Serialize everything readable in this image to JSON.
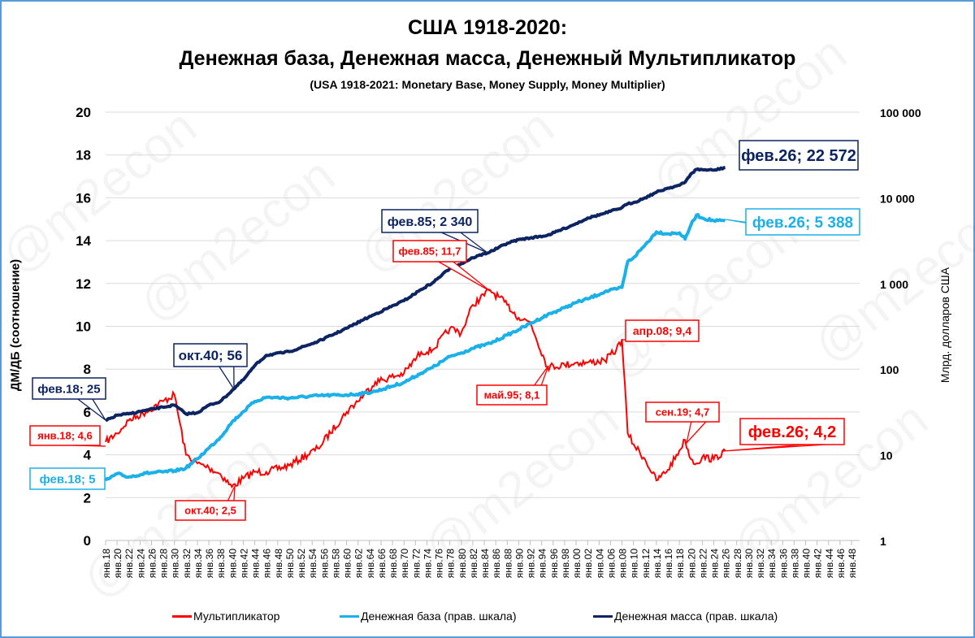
{
  "title": {
    "line1": "США 1918-2020:",
    "line2": "Денежная база, Денежная масса, Денежный Мультипликатор",
    "subtitle": "(USA 1918-2021: Monetary Base, Money Supply,  Money Multiplier)"
  },
  "watermark": "@m2econ",
  "axes": {
    "left_label": "ДМ/ДБ (соотношение)",
    "right_label": "Млрд. долларов США",
    "left_ticks": [
      "0",
      "2",
      "4",
      "6",
      "8",
      "10",
      "12",
      "14",
      "16",
      "18",
      "20"
    ],
    "right_ticks": [
      "1",
      "10",
      "100",
      "1 000",
      "10 000",
      "100 000"
    ],
    "x_ticks": [
      "янв.18",
      "янв.20",
      "янв.22",
      "янв.24",
      "янв.26",
      "янв.28",
      "янв.30",
      "янв.32",
      "янв.34",
      "янв.36",
      "янв.38",
      "янв.40",
      "янв.42",
      "янв.44",
      "янв.46",
      "янв.48",
      "янв.50",
      "янв.52",
      "янв.54",
      "янв.56",
      "янв.58",
      "янв.60",
      "янв.62",
      "янв.64",
      "янв.66",
      "янв.68",
      "янв.70",
      "янв.72",
      "янв.74",
      "янв.76",
      "янв.78",
      "янв.80",
      "янв.82",
      "янв.84",
      "янв.86",
      "янв.88",
      "янв.90",
      "янв.92",
      "янв.94",
      "янв.96",
      "янв.98",
      "янв.00",
      "янв.02",
      "янв.04",
      "янв.06",
      "янв.08",
      "янв.10",
      "янв.12",
      "янв.14",
      "янв.16",
      "янв.18",
      "янв.20",
      "янв.22",
      "янв.24",
      "янв.26",
      "янв.28",
      "янв.30",
      "янв.32",
      "янв.34",
      "янв.36",
      "янв.38",
      "янв.40",
      "янв.42",
      "янв.44",
      "янв.46",
      "янв.48"
    ]
  },
  "legend": {
    "items": [
      {
        "label": "Мультипликатор",
        "color": "#ff0000"
      },
      {
        "label": "Денежная база (прав. шкала)",
        "color": "#1cb0e8"
      },
      {
        "label": "Денежная масса (прав. шкала)",
        "color": "#0c2461"
      }
    ]
  },
  "annotations": {
    "ms_feb18": "фев.18; 25",
    "ms_oct40": "окт.40; 56",
    "ms_feb85": "фев.85; 2 340",
    "ms_feb26": "фев.26; 22 572",
    "mb_feb18": "фев.18; 5",
    "mb_feb26": "фев.26; 5 388",
    "mm_jan18": "янв.18;   4,6",
    "mm_oct40": "окт.40;   2,5",
    "mm_feb85": "фев.85;   11,7",
    "mm_may95": "май.95;   8,1",
    "mm_apr08": "апр.08;   9,4",
    "mm_sep19": "сен.19;   4,7",
    "mm_feb26": "фев.26;   4,2"
  },
  "colors": {
    "multiplier": "#ff0000",
    "base": "#1cb0e8",
    "supply": "#0c2461",
    "grid": "#d9d9d9",
    "frame": "#5b9bd5"
  },
  "chart_data": {
    "type": "line",
    "title": "США 1918-2020: Денежная база, Денежная масса, Денежный Мультипликатор",
    "subtitle": "(USA 1918-2021: Monetary Base, Money Supply,  Money Multiplier)",
    "xlabel": "",
    "ylabel_left": "ДМ/ДБ (соотношение)",
    "ylabel_right": "Млрд. долларов США",
    "ylim_left": [
      0,
      20
    ],
    "ylim_right_log": [
      1,
      100000
    ],
    "xlim": [
      1918,
      2048
    ],
    "grid": true,
    "legend_position": "bottom",
    "x": [
      1918,
      1920,
      1922,
      1925,
      1928,
      1930,
      1932,
      1934,
      1936,
      1938,
      1940,
      1942,
      1944,
      1946,
      1950,
      1955,
      1960,
      1963,
      1965,
      1970,
      1973,
      1975,
      1978,
      1980,
      1982,
      1985,
      1988,
      1990,
      1992,
      1995,
      1998,
      2000,
      2002,
      2005,
      2007,
      2008,
      2009,
      2010,
      2012,
      2014,
      2016,
      2018,
      2019,
      2020,
      2021,
      2022,
      2024,
      2026
    ],
    "series": [
      {
        "name": "Мультипликатор",
        "axis": "left",
        "values": [
          4.6,
          5.0,
          5.6,
          6.0,
          6.5,
          6.8,
          4.0,
          3.6,
          3.4,
          3.1,
          2.5,
          2.9,
          3.2,
          3.2,
          3.5,
          4.3,
          6.0,
          6.8,
          7.4,
          7.8,
          8.8,
          8.9,
          9.9,
          9.7,
          11.0,
          11.7,
          11.0,
          10.4,
          10.2,
          8.1,
          8.2,
          8.3,
          8.3,
          8.4,
          8.9,
          9.4,
          5.0,
          4.5,
          3.8,
          2.8,
          3.3,
          4.2,
          4.7,
          3.8,
          3.6,
          3.9,
          3.8,
          4.2
        ]
      },
      {
        "name": "Денежная база (прав. шкала)",
        "axis": "right",
        "values": [
          5,
          6,
          5.5,
          6.1,
          6.3,
          6.5,
          7.0,
          9,
          12,
          16,
          24,
          32,
          42,
          47,
          46,
          49,
          50,
          52,
          55,
          70,
          90,
          105,
          140,
          155,
          175,
          200,
          250,
          290,
          340,
          430,
          520,
          600,
          660,
          800,
          860,
          900,
          1800,
          2000,
          2800,
          4000,
          3800,
          3900,
          3300,
          4800,
          6300,
          5800,
          5400,
          5388
        ]
      },
      {
        "name": "Денежная масса (прав. шкала)",
        "axis": "right",
        "values": [
          25,
          29,
          30,
          33,
          36,
          38,
          30,
          31,
          38,
          42,
          56,
          75,
          110,
          145,
          160,
          210,
          300,
          380,
          440,
          630,
          850,
          1020,
          1500,
          1700,
          2000,
          2340,
          2950,
          3250,
          3400,
          3650,
          4400,
          5000,
          5800,
          6600,
          7300,
          7700,
          8500,
          8800,
          10000,
          11600,
          13000,
          14000,
          15200,
          19000,
          21500,
          21300,
          21000,
          22572
        ]
      }
    ],
    "annotations": [
      {
        "series": "Денежная масса",
        "label": "фев.18; 25"
      },
      {
        "series": "Денежная масса",
        "label": "окт.40; 56"
      },
      {
        "series": "Денежная масса",
        "label": "фев.85; 2 340"
      },
      {
        "series": "Денежная масса",
        "label": "фев.26; 22 572"
      },
      {
        "series": "Денежная база",
        "label": "фев.18; 5"
      },
      {
        "series": "Денежная база",
        "label": "фев.26; 5 388"
      },
      {
        "series": "Мультипликатор",
        "label": "янв.18; 4,6"
      },
      {
        "series": "Мультипликатор",
        "label": "окт.40; 2,5"
      },
      {
        "series": "Мультипликатор",
        "label": "фев.85; 11,7"
      },
      {
        "series": "Мультипликатор",
        "label": "май.95; 8,1"
      },
      {
        "series": "Мультипликатор",
        "label": "апр.08; 9,4"
      },
      {
        "series": "Мультипликатор",
        "label": "сен.19; 4,7"
      },
      {
        "series": "Мультипликатор",
        "label": "фев.26; 4,2"
      }
    ]
  }
}
